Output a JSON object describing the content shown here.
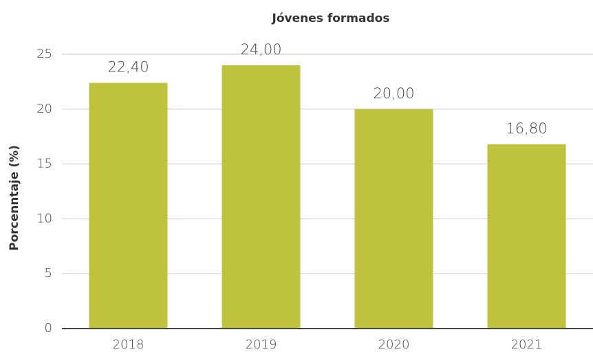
{
  "chart_data": {
    "type": "bar",
    "title": "Jóvenes formados",
    "y_label": "Porcenntaje (%)",
    "categories": [
      "2018",
      "2019",
      "2020",
      "2021"
    ],
    "values": [
      22.4,
      24,
      20,
      16.8
    ],
    "value_labels": [
      "22,40",
      "24,00",
      "20,00",
      "16,80"
    ],
    "color": "#bfc23d",
    "ylim": [
      0,
      25
    ],
    "yticks": [
      0,
      5,
      10,
      15,
      20,
      25
    ],
    "grid": true
  }
}
